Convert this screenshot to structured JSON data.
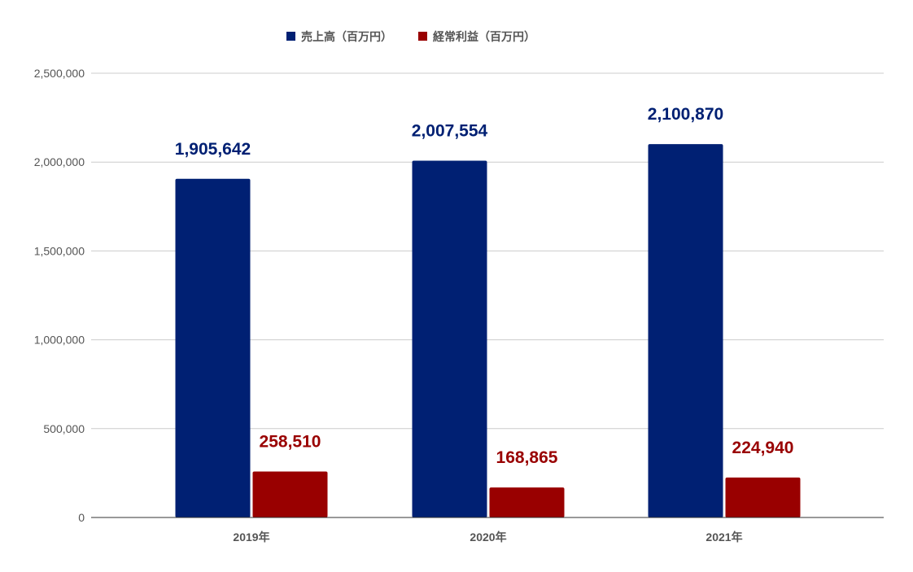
{
  "chart_data": {
    "type": "bar",
    "categories": [
      "2019年",
      "2020年",
      "2021年"
    ],
    "series": [
      {
        "name": "売上高（百万円）",
        "color": "#002073",
        "values": [
          1905642,
          2007554,
          2100870
        ],
        "labels": [
          "1,905,642",
          "2,007,554",
          "2,100,870"
        ]
      },
      {
        "name": "経常利益（百万円）",
        "color": "#990000",
        "values": [
          258510,
          168865,
          224940
        ],
        "labels": [
          "258,510",
          "168,865",
          "224,940"
        ]
      }
    ],
    "ylim": [
      0,
      2500000
    ],
    "yticks": [
      0,
      500000,
      1000000,
      1500000,
      2000000,
      2500000
    ],
    "ytick_labels": [
      "0",
      "500,000",
      "1,000,000",
      "1,500,000",
      "2,000,000",
      "2,500,000"
    ],
    "grid": true,
    "legend": "top-center",
    "xlabel": "",
    "ylabel": ""
  }
}
